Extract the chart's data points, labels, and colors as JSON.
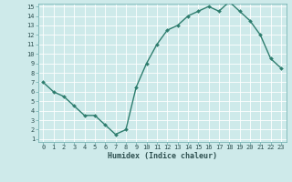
{
  "x": [
    0,
    1,
    2,
    3,
    4,
    5,
    6,
    7,
    8,
    9,
    10,
    11,
    12,
    13,
    14,
    15,
    16,
    17,
    18,
    19,
    20,
    21,
    22,
    23
  ],
  "y": [
    7,
    6,
    5.5,
    4.5,
    3.5,
    3.5,
    2.5,
    1.5,
    2.0,
    6.5,
    9.0,
    11.0,
    12.5,
    13.0,
    14.0,
    14.5,
    15.0,
    14.5,
    15.5,
    14.5,
    13.5,
    12.0,
    9.5,
    8.5
  ],
  "xlabel": "Humidex (Indice chaleur)",
  "ylim_min": 1,
  "ylim_max": 15,
  "xlim_min": 0,
  "xlim_max": 23,
  "line_color": "#2e7d6e",
  "bg_color": "#ceeaea",
  "grid_color": "#ffffff",
  "tick_color": "#2e5050",
  "label_color": "#2e5050",
  "xtick_labels": [
    "0",
    "1",
    "2",
    "3",
    "4",
    "5",
    "6",
    "7",
    "8",
    "9",
    "10",
    "11",
    "12",
    "13",
    "14",
    "15",
    "16",
    "17",
    "18",
    "19",
    "20",
    "21",
    "22",
    "23"
  ],
  "ytick_labels": [
    "1",
    "2",
    "3",
    "4",
    "5",
    "6",
    "7",
    "8",
    "9",
    "10",
    "11",
    "12",
    "13",
    "14",
    "15"
  ],
  "title_fontsize": 5.5,
  "xlabel_fontsize": 6.0,
  "tick_fontsize": 5.0
}
